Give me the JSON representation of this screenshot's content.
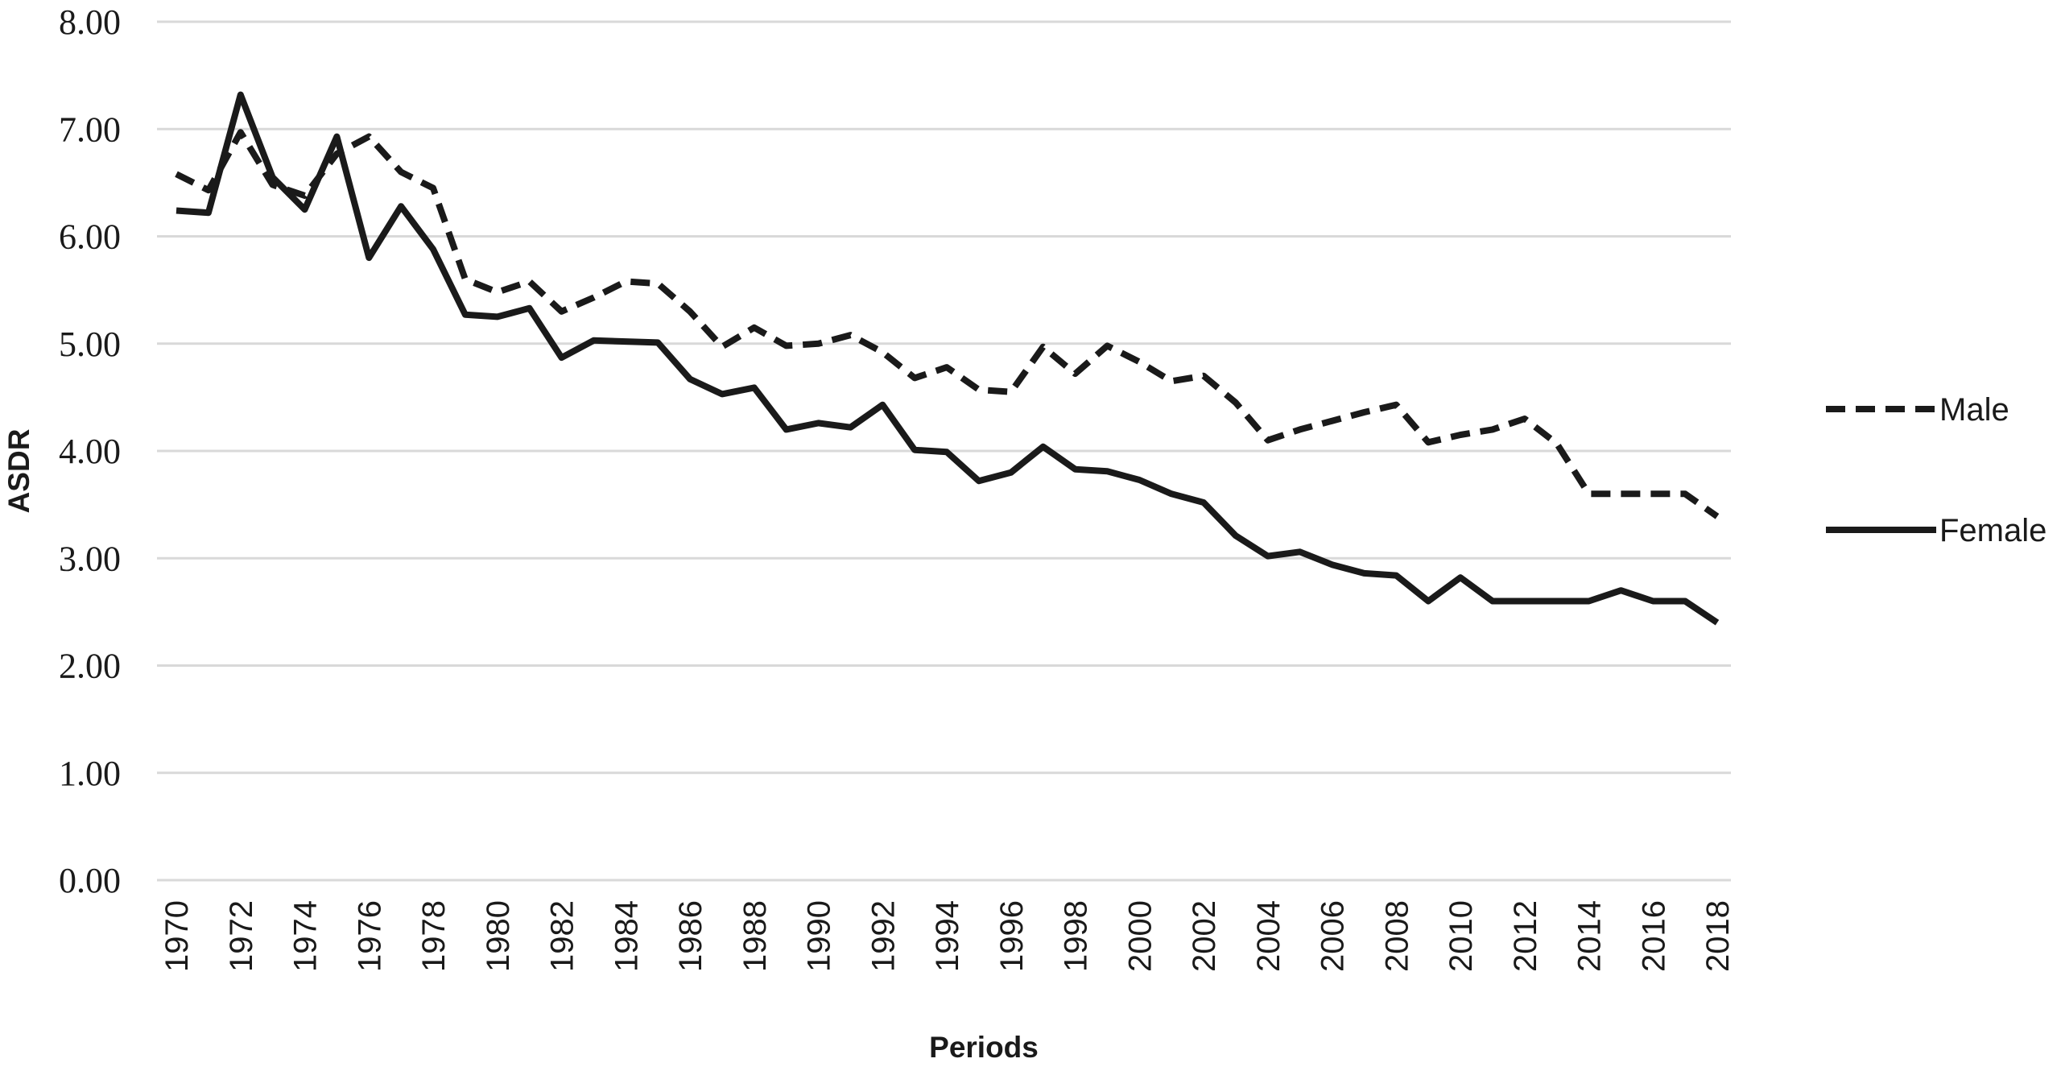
{
  "chart_data": {
    "type": "line",
    "title": "",
    "xlabel": "Periods",
    "ylabel": "ASDR",
    "ylim": [
      0,
      8
    ],
    "yticks": [
      "0.00",
      "1.00",
      "2.00",
      "3.00",
      "4.00",
      "5.00",
      "6.00",
      "7.00",
      "8.00"
    ],
    "x": [
      1970,
      1971,
      1972,
      1973,
      1974,
      1975,
      1976,
      1977,
      1978,
      1979,
      1980,
      1981,
      1982,
      1983,
      1984,
      1985,
      1986,
      1987,
      1988,
      1989,
      1990,
      1991,
      1992,
      1993,
      1994,
      1995,
      1996,
      1997,
      1998,
      1999,
      2000,
      2001,
      2002,
      2003,
      2004,
      2005,
      2006,
      2007,
      2008,
      2009,
      2010,
      2011,
      2012,
      2013,
      2014,
      2015,
      2016,
      2017,
      2018
    ],
    "xticks": [
      "1970",
      "1972",
      "1974",
      "1976",
      "1978",
      "1980",
      "1982",
      "1984",
      "1986",
      "1988",
      "1990",
      "1992",
      "1994",
      "1996",
      "1998",
      "2000",
      "2002",
      "2004",
      "2006",
      "2008",
      "2010",
      "2012",
      "2014",
      "2016",
      "2018"
    ],
    "grid": true,
    "legend_position": "right",
    "series": [
      {
        "name": "Male",
        "style": "dashed",
        "color": "#1a1a1a",
        "values": [
          6.58,
          6.43,
          6.97,
          6.48,
          6.38,
          6.77,
          6.93,
          6.6,
          6.45,
          5.6,
          5.48,
          5.58,
          5.3,
          5.43,
          5.58,
          5.56,
          5.3,
          4.97,
          5.15,
          4.98,
          5.0,
          5.08,
          4.92,
          4.68,
          4.78,
          4.57,
          4.55,
          4.97,
          4.72,
          4.98,
          4.83,
          4.65,
          4.7,
          4.45,
          4.1,
          4.2,
          4.28,
          4.36,
          4.43,
          4.08,
          4.15,
          4.2,
          4.3,
          4.07,
          3.6,
          3.6,
          3.6,
          3.6,
          3.39
        ]
      },
      {
        "name": "Female",
        "style": "solid",
        "color": "#1a1a1a",
        "values": [
          6.24,
          6.22,
          7.32,
          6.55,
          6.25,
          6.93,
          5.8,
          6.28,
          5.88,
          5.27,
          5.25,
          5.33,
          4.87,
          5.03,
          5.02,
          5.01,
          4.67,
          4.53,
          4.59,
          4.2,
          4.26,
          4.22,
          4.43,
          4.01,
          3.99,
          3.72,
          3.8,
          4.04,
          3.83,
          3.81,
          3.73,
          3.6,
          3.52,
          3.21,
          3.02,
          3.06,
          2.94,
          2.86,
          2.84,
          2.6,
          2.82,
          2.6,
          2.6,
          2.6,
          2.6,
          2.7,
          2.6,
          2.6,
          2.4
        ]
      }
    ]
  }
}
